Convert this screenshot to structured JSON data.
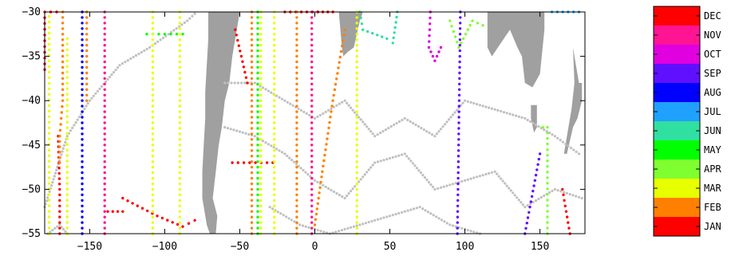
{
  "chart_data": {
    "type": "scatter",
    "title": "",
    "xlabel": "",
    "ylabel": "",
    "xlim": [
      -180,
      180
    ],
    "ylim": [
      -55,
      -30
    ],
    "xticks": [
      -150,
      -100,
      -50,
      0,
      50,
      100,
      150
    ],
    "xtick_labels": [
      "−150",
      "−100",
      "−50",
      "0",
      "50",
      "100",
      "150"
    ],
    "yticks": [
      -30,
      -35,
      -40,
      -45,
      -50,
      -55
    ],
    "ytick_labels": [
      "−30",
      "−35",
      "−40",
      "−45",
      "−50",
      "−55"
    ],
    "grid": false,
    "legend_position": "right (colorbar)",
    "land_color": "#a0a0a0",
    "background_track_color": "#c0c0c0",
    "months": [
      {
        "label": "DEC",
        "color": "#ff0000"
      },
      {
        "label": "NOV",
        "color": "#ff1493"
      },
      {
        "label": "OCT",
        "color": "#e000e0"
      },
      {
        "label": "SEP",
        "color": "#6010ff"
      },
      {
        "label": "AUG",
        "color": "#0000ff"
      },
      {
        "label": "JUL",
        "color": "#20a0ff"
      },
      {
        "label": "JUN",
        "color": "#30e0a0"
      },
      {
        "label": "MAY",
        "color": "#00ff00"
      },
      {
        "label": "APR",
        "color": "#80ff30"
      },
      {
        "label": "MAR",
        "color": "#e8ff00"
      },
      {
        "label": "FEB",
        "color": "#ff8000"
      },
      {
        "label": "JAN",
        "color": "#ff0000"
      }
    ],
    "series": [
      {
        "month": "JAN",
        "type": "line",
        "points": [
          [
            -180,
            -36.5
          ],
          [
            -180,
            -30
          ]
        ]
      },
      {
        "month": "DEC",
        "type": "line",
        "points": [
          [
            -176,
            -30
          ],
          [
            -172,
            -30
          ]
        ]
      },
      {
        "month": "JAN",
        "type": "line",
        "points": [
          [
            -171,
            -44
          ],
          [
            -170,
            -50
          ],
          [
            -170,
            -55
          ]
        ]
      },
      {
        "month": "FEB",
        "type": "line",
        "points": [
          [
            -168,
            -30
          ],
          [
            -168,
            -40
          ],
          [
            -170,
            -44
          ],
          [
            -170,
            -47
          ]
        ]
      },
      {
        "month": "MAR",
        "type": "line",
        "points": [
          [
            -177,
            -30.5
          ],
          [
            -177,
            -55
          ]
        ]
      },
      {
        "month": "MAR",
        "type": "line",
        "points": [
          [
            -165,
            -33
          ],
          [
            -165,
            -55
          ]
        ]
      },
      {
        "month": "AUG",
        "type": "line",
        "points": [
          [
            -155,
            -30
          ],
          [
            -155,
            -55
          ]
        ]
      },
      {
        "month": "FEB",
        "type": "line",
        "points": [
          [
            -152,
            -30
          ],
          [
            -152,
            -40
          ]
        ]
      },
      {
        "month": "NOV",
        "type": "line",
        "points": [
          [
            -140,
            -30
          ],
          [
            -140,
            -55
          ]
        ]
      },
      {
        "month": "JAN",
        "type": "line",
        "points": [
          [
            -138,
            -52.5
          ],
          [
            -128,
            -52.5
          ]
        ]
      },
      {
        "month": "JAN",
        "type": "line",
        "points": [
          [
            -128,
            -51
          ],
          [
            -105,
            -53
          ],
          [
            -88,
            -54.2
          ],
          [
            -80,
            -53.5
          ]
        ]
      },
      {
        "month": "MAY",
        "type": "line",
        "points": [
          [
            -112,
            -32.5
          ],
          [
            -88,
            -32.5
          ]
        ]
      },
      {
        "month": "MAR",
        "type": "line",
        "points": [
          [
            -108,
            -30
          ],
          [
            -108,
            -55
          ]
        ]
      },
      {
        "month": "MAR",
        "type": "line",
        "points": [
          [
            -90,
            -30
          ],
          [
            -90,
            -55
          ]
        ]
      },
      {
        "month": "DEC",
        "type": "line",
        "points": [
          [
            -53,
            -32
          ],
          [
            -45,
            -38
          ]
        ]
      },
      {
        "month": "JAN",
        "type": "line",
        "points": [
          [
            -55,
            -47
          ],
          [
            -28,
            -47
          ]
        ]
      },
      {
        "month": "MAY",
        "type": "line",
        "points": [
          [
            -38,
            -30
          ],
          [
            -38,
            -55
          ]
        ]
      },
      {
        "month": "FEB",
        "type": "line",
        "points": [
          [
            -42,
            -30
          ],
          [
            -42,
            -55
          ]
        ]
      },
      {
        "month": "MAR",
        "type": "line",
        "points": [
          [
            -36,
            -30
          ],
          [
            -36,
            -55
          ]
        ]
      },
      {
        "month": "MAR",
        "type": "line",
        "points": [
          [
            -27,
            -30
          ],
          [
            -27,
            -55
          ]
        ]
      },
      {
        "month": "JAN",
        "type": "line",
        "points": [
          [
            -20,
            -30
          ],
          [
            2,
            -30
          ]
        ]
      },
      {
        "month": "FEB",
        "type": "line",
        "points": [
          [
            -12,
            -30
          ],
          [
            -12,
            -55
          ]
        ]
      },
      {
        "month": "NOV",
        "type": "line",
        "points": [
          [
            -2,
            -30
          ],
          [
            -2,
            -55
          ]
        ]
      },
      {
        "month": "DEC",
        "type": "line",
        "points": [
          [
            2,
            -30
          ],
          [
            12,
            -30
          ]
        ]
      },
      {
        "month": "FEB",
        "type": "line",
        "points": [
          [
            0,
            -54
          ],
          [
            5,
            -48
          ],
          [
            12,
            -40
          ],
          [
            20,
            -32
          ]
        ]
      },
      {
        "month": "JUN",
        "type": "line",
        "points": [
          [
            30,
            -30
          ],
          [
            32,
            -32
          ],
          [
            48,
            -33
          ],
          [
            52,
            -33.5
          ],
          [
            55,
            -30
          ]
        ]
      },
      {
        "month": "MAR",
        "type": "line",
        "points": [
          [
            28,
            -30
          ],
          [
            28,
            -55
          ]
        ]
      },
      {
        "month": "OCT",
        "type": "line",
        "points": [
          [
            77,
            -30
          ],
          [
            76,
            -34
          ],
          [
            80,
            -35.5
          ],
          [
            84,
            -34
          ]
        ]
      },
      {
        "month": "SEP",
        "type": "line",
        "points": [
          [
            97,
            -30
          ],
          [
            95,
            -55
          ]
        ]
      },
      {
        "month": "APR",
        "type": "line",
        "points": [
          [
            90,
            -31
          ],
          [
            96,
            -34
          ],
          [
            102,
            -32
          ],
          [
            105,
            -31
          ],
          [
            112,
            -31.5
          ]
        ]
      },
      {
        "month": "SEP",
        "type": "line",
        "points": [
          [
            150,
            -46
          ],
          [
            140,
            -55
          ]
        ]
      },
      {
        "month": "APR",
        "type": "line",
        "points": [
          [
            152,
            -43
          ],
          [
            155,
            -43
          ],
          [
            155,
            -55
          ]
        ]
      },
      {
        "month": "JUL",
        "type": "line",
        "points": [
          [
            158,
            -30
          ],
          [
            176,
            -30
          ]
        ]
      },
      {
        "month": "DEC",
        "type": "line",
        "points": [
          [
            165,
            -50
          ],
          [
            170,
            -55
          ]
        ]
      }
    ],
    "background_tracks": [
      [
        [
          -180,
          -52
        ],
        [
          -165,
          -44
        ],
        [
          -150,
          -40
        ],
        [
          -130,
          -36
        ],
        [
          -110,
          -34
        ],
        [
          -85,
          -31
        ],
        [
          -80,
          -30.2
        ]
      ],
      [
        [
          -60,
          -38
        ],
        [
          -40,
          -38
        ],
        [
          -20,
          -40
        ],
        [
          0,
          -42
        ],
        [
          20,
          -40
        ],
        [
          40,
          -44
        ],
        [
          60,
          -42
        ],
        [
          80,
          -44
        ],
        [
          100,
          -40
        ],
        [
          120,
          -41
        ],
        [
          140,
          -42
        ],
        [
          160,
          -44
        ],
        [
          176,
          -46
        ]
      ],
      [
        [
          -60,
          -43
        ],
        [
          -40,
          -44
        ],
        [
          -20,
          -46
        ],
        [
          0,
          -49
        ],
        [
          20,
          -51
        ],
        [
          40,
          -47
        ],
        [
          60,
          -46
        ],
        [
          80,
          -50
        ],
        [
          100,
          -49
        ],
        [
          120,
          -48
        ],
        [
          140,
          -52
        ],
        [
          160,
          -50
        ],
        [
          178,
          -51
        ]
      ],
      [
        [
          -30,
          -52
        ],
        [
          -10,
          -54
        ],
        [
          10,
          -55
        ],
        [
          30,
          -54
        ],
        [
          50,
          -53
        ],
        [
          70,
          -52
        ],
        [
          90,
          -54
        ],
        [
          110,
          -55
        ]
      ],
      [
        [
          -178,
          -55
        ],
        [
          -170,
          -54
        ],
        [
          -165,
          -55
        ]
      ]
    ]
  }
}
